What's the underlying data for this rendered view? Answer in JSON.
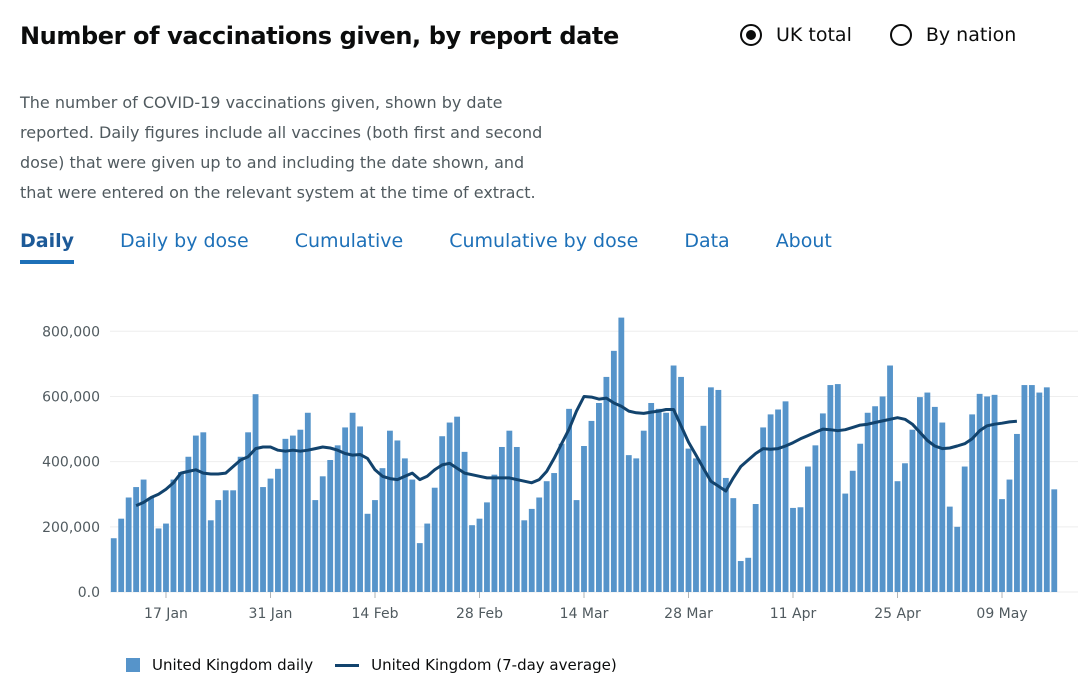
{
  "header": {
    "title": "Number of vaccinations given, by report date",
    "radios": [
      {
        "label": "UK total",
        "checked": true
      },
      {
        "label": "By nation",
        "checked": false
      }
    ]
  },
  "description": "The number of COVID-19 vaccinations given, shown by date reported. Daily figures include all vaccines (both first and second dose) that were given up to and including the date shown, and that were entered on the relevant system at the time of extract.",
  "tabs": [
    {
      "label": "Daily",
      "active": true
    },
    {
      "label": "Daily by dose",
      "active": false
    },
    {
      "label": "Cumulative",
      "active": false
    },
    {
      "label": "Cumulative by dose",
      "active": false
    },
    {
      "label": "Data",
      "active": false
    },
    {
      "label": "About",
      "active": false
    }
  ],
  "colors": {
    "bar": "#5694ca",
    "line": "#12436d",
    "grid": "#eeeeee",
    "axis_text": "#505a5f"
  },
  "chart_data": {
    "type": "bar",
    "x_start": "2021-01-10",
    "x_tick_labels": [
      "17 Jan",
      "31 Jan",
      "14 Feb",
      "28 Feb",
      "14 Mar",
      "28 Mar",
      "11 Apr",
      "25 Apr",
      "09 May"
    ],
    "y_tick_labels": [
      "0.0",
      "200,000",
      "400,000",
      "600,000",
      "800,000"
    ],
    "ylim": [
      0,
      850000
    ],
    "series": [
      {
        "name": "United Kingdom daily",
        "type": "bar",
        "values": [
          165000,
          225000,
          290000,
          322000,
          345000,
          290000,
          195000,
          210000,
          345000,
          368000,
          415000,
          480000,
          490000,
          220000,
          282000,
          312000,
          312000,
          415000,
          490000,
          607000,
          322000,
          348000,
          378000,
          470000,
          480000,
          498000,
          550000,
          282000,
          355000,
          405000,
          450000,
          505000,
          550000,
          508000,
          240000,
          282000,
          380000,
          495000,
          465000,
          410000,
          345000,
          150000,
          210000,
          320000,
          478000,
          520000,
          538000,
          430000,
          205000,
          225000,
          275000,
          360000,
          445000,
          495000,
          445000,
          220000,
          255000,
          290000,
          340000,
          365000,
          455000,
          562000,
          282000,
          448000,
          525000,
          580000,
          660000,
          740000,
          842000,
          420000,
          410000,
          495000,
          580000,
          562000,
          550000,
          695000,
          660000,
          440000,
          410000,
          510000,
          628000,
          620000,
          350000,
          288000,
          95000,
          105000,
          270000,
          505000,
          545000,
          560000,
          585000,
          258000,
          260000,
          385000,
          450000,
          548000,
          635000,
          638000,
          302000,
          372000,
          455000,
          550000,
          570000,
          600000,
          695000,
          340000,
          395000,
          498000,
          598000,
          612000,
          568000,
          520000,
          262000,
          200000,
          385000,
          545000,
          608000,
          600000,
          605000,
          285000,
          345000,
          485000,
          635000,
          635000,
          612000,
          628000,
          315000
        ]
      },
      {
        "name": "United Kingdom (7-day average)",
        "type": "line",
        "values": [
          null,
          null,
          null,
          265000,
          275000,
          290000,
          300000,
          315000,
          335000,
          365000,
          370000,
          375000,
          365000,
          362000,
          362000,
          365000,
          385000,
          405000,
          415000,
          440000,
          445000,
          445000,
          435000,
          432000,
          435000,
          432000,
          435000,
          440000,
          445000,
          442000,
          435000,
          425000,
          420000,
          422000,
          410000,
          375000,
          355000,
          348000,
          345000,
          355000,
          365000,
          345000,
          355000,
          375000,
          390000,
          395000,
          380000,
          365000,
          360000,
          355000,
          350000,
          350000,
          350000,
          350000,
          345000,
          340000,
          335000,
          345000,
          370000,
          410000,
          455000,
          500000,
          555000,
          600000,
          598000,
          592000,
          595000,
          580000,
          570000,
          555000,
          550000,
          548000,
          552000,
          555000,
          560000,
          560000,
          510000,
          460000,
          420000,
          380000,
          340000,
          325000,
          310000,
          350000,
          385000,
          405000,
          425000,
          440000,
          438000,
          440000,
          448000,
          458000,
          470000,
          480000,
          490000,
          500000,
          498000,
          495000,
          498000,
          505000,
          512000,
          515000,
          520000,
          525000,
          530000,
          535000,
          530000,
          515000,
          490000,
          465000,
          448000,
          440000,
          442000,
          448000,
          455000,
          470000,
          495000,
          510000,
          515000,
          518000,
          522000,
          524000
        ]
      }
    ],
    "legend_position": "bottom-left",
    "grid": true
  }
}
